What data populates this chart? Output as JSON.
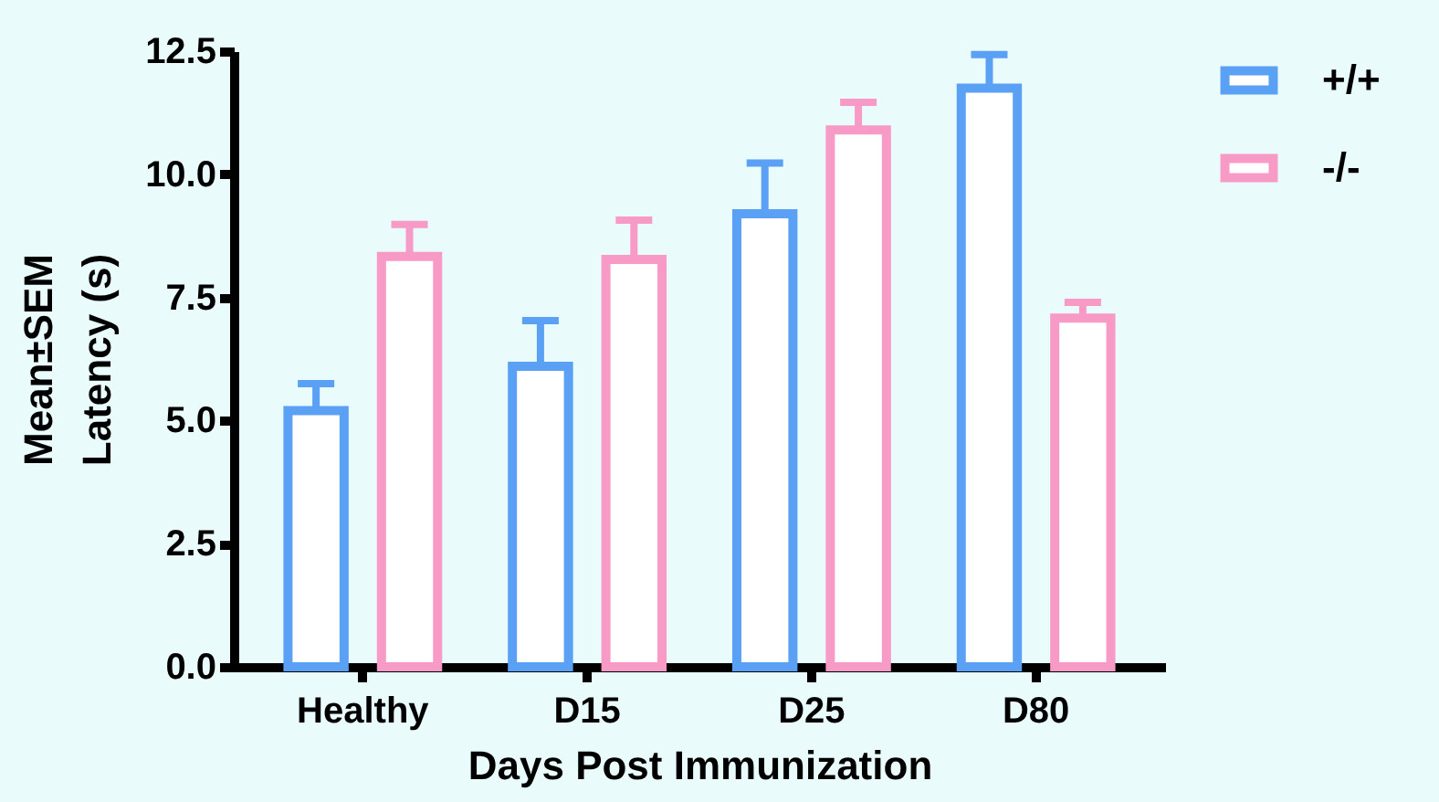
{
  "chart_data": {
    "type": "bar",
    "xlabel": "Days Post Immunization",
    "ylabel": "Mean±SEM\nLatency (s)",
    "categories": [
      "Healthy",
      "D15",
      "D25",
      "D80"
    ],
    "series": [
      {
        "name": "+/+",
        "color": "#5aa0f5",
        "values": [
          5.2,
          6.1,
          9.2,
          11.75
        ],
        "errors": [
          [
            5.2,
            5.75
          ],
          [
            6.1,
            7.03
          ],
          [
            9.2,
            10.23
          ],
          [
            11.75,
            12.43
          ]
        ]
      },
      {
        "name": "-/-",
        "color": "#f79ac5",
        "values": [
          8.33,
          8.27,
          10.9,
          7.08
        ],
        "errors": [
          [
            8.33,
            8.98
          ],
          [
            8.27,
            9.07
          ],
          [
            10.9,
            11.46
          ],
          [
            7.08,
            7.4
          ]
        ]
      }
    ],
    "ylim": [
      0,
      12.5
    ],
    "yticks": [
      {
        "value": 0,
        "label": "0.0"
      },
      {
        "value": 2.5,
        "label": "2.5"
      },
      {
        "value": 5,
        "label": "5.0"
      },
      {
        "value": 7.5,
        "label": "7.5"
      },
      {
        "value": 10,
        "label": "10.0"
      },
      {
        "value": 12.5,
        "label": "12.5"
      }
    ],
    "grid": false,
    "legend": "top right"
  }
}
